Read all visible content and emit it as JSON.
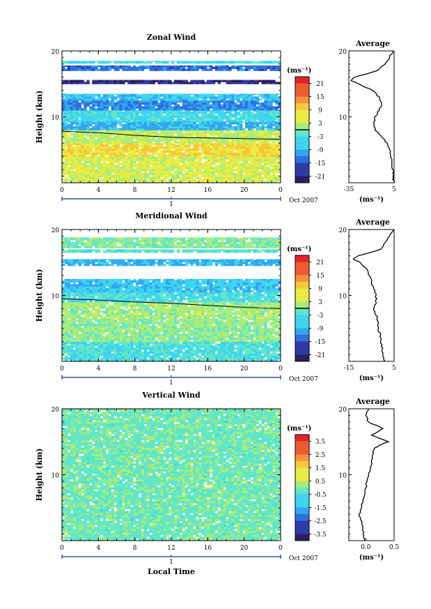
{
  "chart_data": [
    {
      "type": "heatmap",
      "title": "Zonal Wind",
      "ylabel": "Height (km)",
      "xlabel": "",
      "xlim": [
        0,
        24
      ],
      "ylim": [
        0,
        20
      ],
      "x_ticks": [
        "0",
        "4",
        "8",
        "12",
        "16",
        "20",
        "0"
      ],
      "y_ticks": [
        "20",
        "10"
      ],
      "date_label": "Oct 2007",
      "day_label": "1",
      "colorbar": {
        "unit": "(ms⁻¹)",
        "ticks": [
          "21",
          "15",
          "9",
          "3",
          "-3",
          "-9",
          "-15",
          "-21"
        ],
        "range": [
          -24,
          24
        ],
        "zero_contour": true
      },
      "layers": [
        {
          "from_km": 0.0,
          "to_km": 4.0,
          "value": 5
        },
        {
          "from_km": 4.0,
          "to_km": 6.0,
          "value": 8
        },
        {
          "from_km": 6.0,
          "to_km": 8.0,
          "value": 3
        },
        {
          "from_km": 8.0,
          "to_km": 9.3,
          "value": -9
        },
        {
          "from_km": 9.3,
          "to_km": 11.0,
          "value": -5
        },
        {
          "from_km": 11.0,
          "to_km": 12.5,
          "value": -12
        },
        {
          "from_km": 12.5,
          "to_km": 13.5,
          "value": -7
        },
        {
          "from_km": 15.0,
          "to_km": 15.6,
          "value": -20
        },
        {
          "from_km": 17.0,
          "to_km": 17.8,
          "value": -14
        },
        {
          "from_km": 18.1,
          "to_km": 18.5,
          "value": -4
        }
      ],
      "zero_contour_km": [
        7.8,
        7.6,
        7.2,
        6.9,
        6.8,
        6.7,
        6.6
      ],
      "profile": {
        "title": "Average",
        "xlabel": "(ms⁻¹)",
        "x_ticks": [
          "-35",
          "5"
        ],
        "xlim": [
          -35,
          5
        ],
        "heights_km": [
          0,
          1,
          2,
          3,
          4,
          5,
          6,
          7,
          8,
          9,
          10,
          11,
          12,
          13,
          14,
          15,
          15.5,
          16,
          17,
          18,
          19,
          20
        ],
        "values": [
          5,
          4,
          4,
          3,
          2,
          1,
          -1,
          -6,
          -12,
          -13,
          -12,
          -8,
          -6,
          -8,
          -14,
          -26,
          -33,
          -30,
          -10,
          -3,
          1,
          4
        ]
      }
    },
    {
      "type": "heatmap",
      "title": "Meridional Wind",
      "ylabel": "Height (km)",
      "xlabel": "",
      "xlim": [
        0,
        24
      ],
      "ylim": [
        0,
        20
      ],
      "x_ticks": [
        "0",
        "4",
        "8",
        "12",
        "16",
        "20",
        "0"
      ],
      "y_ticks": [
        "20",
        "10"
      ],
      "date_label": "Oct 2007",
      "day_label": "1",
      "colorbar": {
        "unit": "(ms⁻¹)",
        "ticks": [
          "21",
          "15",
          "9",
          "3",
          "-3",
          "-9",
          "-15",
          "-21"
        ],
        "range": [
          -24,
          24
        ],
        "zero_contour": true
      },
      "layers": [
        {
          "from_km": 0.0,
          "to_km": 3.0,
          "value": -4
        },
        {
          "from_km": 3.0,
          "to_km": 6.5,
          "value": 1
        },
        {
          "from_km": 6.5,
          "to_km": 9.0,
          "value": 2
        },
        {
          "from_km": 9.0,
          "to_km": 10.5,
          "value": -4
        },
        {
          "from_km": 10.5,
          "to_km": 12.5,
          "value": -7
        },
        {
          "from_km": 14.5,
          "to_km": 15.5,
          "value": -9
        },
        {
          "from_km": 16.5,
          "to_km": 17.0,
          "value": -3
        },
        {
          "from_km": 17.2,
          "to_km": 18.8,
          "value": 0
        }
      ],
      "zero_contour_km": [
        9.5,
        9.3,
        9.0,
        8.8,
        8.5,
        8.2,
        8.0
      ],
      "profile": {
        "title": "Average",
        "xlabel": "(ms⁻¹)",
        "x_ticks": [
          "-15",
          "5"
        ],
        "xlim": [
          -15,
          5
        ],
        "heights_km": [
          0,
          1,
          2,
          3,
          4,
          5,
          6,
          7,
          8,
          9,
          10,
          11,
          12,
          13,
          14,
          15,
          15.5,
          16,
          17,
          18,
          19,
          20
        ],
        "values": [
          1,
          0,
          0,
          -1,
          -1,
          -2,
          -2,
          -3,
          -4,
          -3,
          -3,
          -4,
          -5,
          -6,
          -7,
          -10,
          -13,
          -11,
          -1,
          1,
          3,
          5
        ]
      }
    },
    {
      "type": "heatmap",
      "title": "Vertical Wind",
      "ylabel": "Height (km)",
      "xlabel": "Local Time",
      "xlim": [
        0,
        24
      ],
      "ylim": [
        0,
        20
      ],
      "x_ticks": [
        "0",
        "4",
        "8",
        "12",
        "16",
        "20",
        "0"
      ],
      "y_ticks": [
        "20",
        "10"
      ],
      "date_label": "Oct 2007",
      "day_label": "1",
      "colorbar": {
        "unit": "(ms⁻¹)",
        "ticks": [
          "3.5",
          "2.5",
          "1.5",
          "0.5",
          "-0.5",
          "-1.5",
          "-2.5",
          "-3.5"
        ],
        "range": [
          -4,
          4
        ],
        "zero_contour": false
      },
      "layers": [
        {
          "from_km": 0.0,
          "to_km": 20.0,
          "value": -0.2
        }
      ],
      "zero_contour_km": [],
      "profile": {
        "title": "Average",
        "xlabel": "(ms⁻¹)",
        "x_ticks": [
          "0.0",
          "0.5"
        ],
        "xlim": [
          -0.3,
          0.5
        ],
        "heights_km": [
          0,
          1,
          2,
          3,
          4,
          5,
          6,
          7,
          8,
          9,
          10,
          11,
          12,
          13,
          14,
          14.5,
          15,
          16,
          17,
          18,
          19,
          20
        ],
        "values": [
          -0.02,
          -0.05,
          -0.05,
          -0.08,
          -0.12,
          -0.08,
          -0.05,
          -0.02,
          0.0,
          0.02,
          0.05,
          0.08,
          0.1,
          0.12,
          0.15,
          0.25,
          0.4,
          0.1,
          0.3,
          0.05,
          0.0,
          0.05
        ]
      }
    }
  ]
}
